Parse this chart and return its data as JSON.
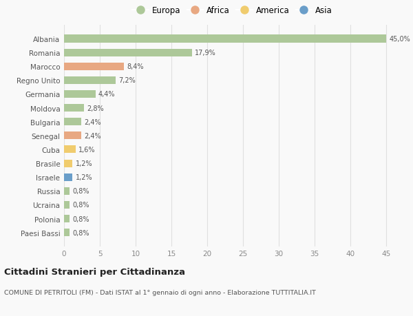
{
  "countries": [
    "Albania",
    "Romania",
    "Marocco",
    "Regno Unito",
    "Germania",
    "Moldova",
    "Bulgaria",
    "Senegal",
    "Cuba",
    "Brasile",
    "Israele",
    "Russia",
    "Ucraina",
    "Polonia",
    "Paesi Bassi"
  ],
  "values": [
    45.0,
    17.9,
    8.4,
    7.2,
    4.4,
    2.8,
    2.4,
    2.4,
    1.6,
    1.2,
    1.2,
    0.8,
    0.8,
    0.8,
    0.8
  ],
  "labels": [
    "45,0%",
    "17,9%",
    "8,4%",
    "7,2%",
    "4,4%",
    "2,8%",
    "2,4%",
    "2,4%",
    "1,6%",
    "1,2%",
    "1,2%",
    "0,8%",
    "0,8%",
    "0,8%",
    "0,8%"
  ],
  "continents": [
    "Europa",
    "Europa",
    "Africa",
    "Europa",
    "Europa",
    "Europa",
    "Europa",
    "Africa",
    "America",
    "America",
    "Asia",
    "Europa",
    "Europa",
    "Europa",
    "Europa"
  ],
  "colors": {
    "Europa": "#adc899",
    "Africa": "#e8a882",
    "America": "#f0cc6e",
    "Asia": "#6a9ec9"
  },
  "legend_order": [
    "Europa",
    "Africa",
    "America",
    "Asia"
  ],
  "title": "Cittadini Stranieri per Cittadinanza",
  "subtitle": "COMUNE DI PETRITOLI (FM) - Dati ISTAT al 1° gennaio di ogni anno - Elaborazione TUTTITALIA.IT",
  "xlim": [
    0,
    47
  ],
  "xticks": [
    0,
    5,
    10,
    15,
    20,
    25,
    30,
    35,
    40,
    45
  ],
  "background_color": "#f9f9f9",
  "grid_color": "#e0e0e0",
  "bar_height": 0.55
}
